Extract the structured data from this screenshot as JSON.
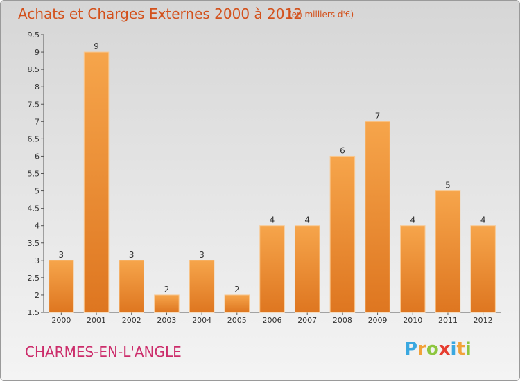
{
  "chart_data": {
    "type": "bar",
    "title": "Achats et Charges Externes 2000 à 2012",
    "subtitle": "(en milliers d'€)",
    "categories": [
      "2000",
      "2001",
      "2002",
      "2003",
      "2004",
      "2005",
      "2006",
      "2007",
      "2008",
      "2009",
      "2010",
      "2011",
      "2012"
    ],
    "values": [
      3,
      9,
      3,
      2,
      3,
      2,
      4,
      4,
      6,
      7,
      4,
      5,
      4
    ],
    "ylim": [
      1.5,
      9.5
    ],
    "yticks": [
      "1.5",
      "2",
      "2.5",
      "3",
      "3.5",
      "4",
      "4.5",
      "5",
      "5.5",
      "6",
      "6.5",
      "7",
      "7.5",
      "8",
      "8.5",
      "9",
      "9.5"
    ],
    "grid": false,
    "bar_color": "#f2953f"
  },
  "place": "CHARMES-EN-L'ANGLE",
  "brand": {
    "letters": [
      "P",
      "r",
      "o",
      "x",
      "i",
      "t",
      "i"
    ],
    "colors": [
      "#3aa8e0",
      "#f2a23a",
      "#8dc63f",
      "#e63c2f",
      "#3aa8e0",
      "#f2a23a",
      "#8dc63f"
    ]
  }
}
